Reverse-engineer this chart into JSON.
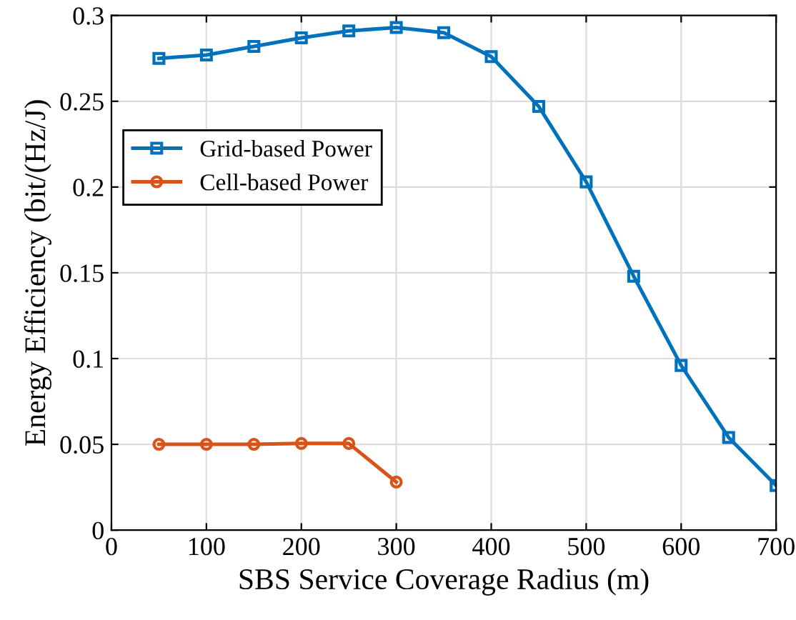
{
  "chart_data": {
    "type": "line",
    "xlabel": "SBS Service Coverage Radius (m)",
    "ylabel": "Energy Efficiency (bit/(Hz/J)",
    "xlim": [
      0,
      700
    ],
    "xticks": [
      0,
      100,
      200,
      300,
      400,
      500,
      600,
      700
    ],
    "ylim": [
      0,
      0.3
    ],
    "yticks": [
      0,
      0.05,
      0.1,
      0.15,
      0.2,
      0.25,
      0.3
    ],
    "grid": true,
    "legend": "top left",
    "series": [
      {
        "name": "Grid-based Power",
        "color": "#0072bd",
        "marker": "square",
        "x": [
          50,
          100,
          150,
          200,
          250,
          300,
          350,
          400,
          450,
          500,
          550,
          600,
          650,
          700
        ],
        "values": [
          0.275,
          0.277,
          0.282,
          0.287,
          0.291,
          0.293,
          0.29,
          0.276,
          0.247,
          0.203,
          0.148,
          0.096,
          0.054,
          0.026
        ]
      },
      {
        "name": "Cell-based Power",
        "color": "#d95319",
        "marker": "circle",
        "x": [
          50,
          100,
          150,
          200,
          250,
          300
        ],
        "values": [
          0.05,
          0.05,
          0.05,
          0.0505,
          0.0505,
          0.028
        ]
      }
    ]
  }
}
